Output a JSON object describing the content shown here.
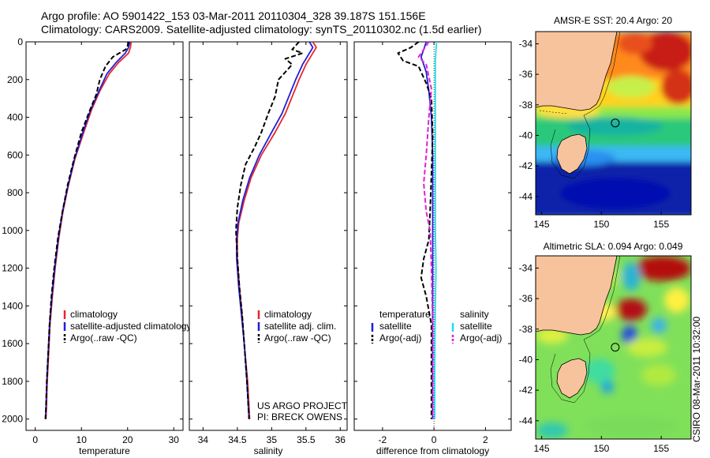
{
  "title_line1": "Argo profile: AO 5901422_153 03-Mar-2011 20110304_328 39.187S 151.156E",
  "title_line2": "Climatology: CARS2009. Satellite-adjusted climatology: synTS_20110302.nc (1.5d earlier)",
  "side_label": "CSIRO 08-Mar-2011 10:32:00",
  "colors": {
    "climatology": "#e8262a",
    "satellite": "#1f1fd6",
    "argo": "#000000",
    "sat_salinity": "#1fdcf0",
    "argo_salinity_adj": "#e21fd8"
  },
  "chart_data": [
    {
      "type": "line",
      "xlabel": "temperature",
      "ylabel": "",
      "xlim": [
        -2,
        32
      ],
      "ylim": [
        2060,
        0
      ],
      "y_reversed": true,
      "xticks": [
        0,
        10,
        20,
        30
      ],
      "yticks": [
        0,
        200,
        400,
        600,
        800,
        1000,
        1200,
        1400,
        1600,
        1800,
        2000
      ],
      "legend": [
        "climatology",
        "satellite-adjusted climatology",
        "Argo(..raw -QC)"
      ],
      "legend_position": "lower-right",
      "series": [
        {
          "name": "climatology",
          "style": "solid",
          "color": "#e8262a",
          "points": [
            [
              20.8,
              0
            ],
            [
              20.6,
              30
            ],
            [
              20.2,
              60
            ],
            [
              18,
              110
            ],
            [
              16,
              170
            ],
            [
              14,
              260
            ],
            [
              12.2,
              360
            ],
            [
              10.5,
              480
            ],
            [
              8.6,
              620
            ],
            [
              7.2,
              760
            ],
            [
              6,
              900
            ],
            [
              5.1,
              1040
            ],
            [
              4.3,
              1200
            ],
            [
              3.7,
              1350
            ],
            [
              3.2,
              1500
            ],
            [
              2.9,
              1650
            ],
            [
              2.6,
              1800
            ],
            [
              2.4,
              1950
            ],
            [
              2.3,
              2000
            ]
          ]
        },
        {
          "name": "satellite-adjusted climatology",
          "style": "solid",
          "color": "#1f1fd6",
          "points": [
            [
              20.5,
              0
            ],
            [
              20.2,
              30
            ],
            [
              19.5,
              60
            ],
            [
              17.5,
              110
            ],
            [
              15.5,
              170
            ],
            [
              13.8,
              260
            ],
            [
              12,
              360
            ],
            [
              10.3,
              480
            ],
            [
              8.5,
              620
            ],
            [
              7.1,
              760
            ],
            [
              5.9,
              900
            ],
            [
              5,
              1040
            ],
            [
              4.2,
              1200
            ],
            [
              3.6,
              1350
            ],
            [
              3.1,
              1500
            ],
            [
              2.8,
              1650
            ],
            [
              2.5,
              1800
            ],
            [
              2.3,
              1950
            ],
            [
              2.2,
              2000
            ]
          ]
        },
        {
          "name": "Argo(..raw -QC)",
          "style": "dashed",
          "color": "#000000",
          "points": [
            [
              20.2,
              0
            ],
            [
              20.0,
              20
            ],
            [
              19.6,
              40
            ],
            [
              18.2,
              60
            ],
            [
              16.8,
              80
            ],
            [
              15.2,
              130
            ],
            [
              14,
              200
            ],
            [
              13.2,
              280
            ],
            [
              11.7,
              370
            ],
            [
              10,
              480
            ],
            [
              8.4,
              620
            ],
            [
              7,
              760
            ],
            [
              5.9,
              900
            ],
            [
              4.9,
              1040
            ],
            [
              4.1,
              1200
            ],
            [
              3.5,
              1350
            ],
            [
              3.1,
              1500
            ],
            [
              2.8,
              1650
            ],
            [
              2.5,
              1800
            ],
            [
              2.3,
              1950
            ],
            [
              2.2,
              2000
            ]
          ]
        }
      ]
    },
    {
      "type": "line",
      "xlabel": "salinity",
      "ylabel": "",
      "xlim": [
        33.8,
        36.1
      ],
      "ylim": [
        2060,
        0
      ],
      "y_reversed": true,
      "xticks": [
        34,
        34.5,
        35,
        35.5,
        36
      ],
      "yticks": [
        0,
        200,
        400,
        600,
        800,
        1000,
        1200,
        1400,
        1600,
        1800,
        2000
      ],
      "legend": [
        "climatology",
        "satellite adj. clim.",
        "Argo(..raw -QC)"
      ],
      "legend_position": "lower-right",
      "annotation": [
        "US ARGO PROJECT",
        "PI: BRECK OWENS"
      ],
      "series": [
        {
          "name": "climatology",
          "style": "solid",
          "color": "#e8262a",
          "points": [
            [
              35.6,
              0
            ],
            [
              35.65,
              30
            ],
            [
              35.6,
              60
            ],
            [
              35.5,
              120
            ],
            [
              35.4,
              200
            ],
            [
              35.3,
              290
            ],
            [
              35.2,
              380
            ],
            [
              35.05,
              480
            ],
            [
              34.85,
              600
            ],
            [
              34.7,
              720
            ],
            [
              34.6,
              840
            ],
            [
              34.52,
              960
            ],
            [
              34.5,
              1040
            ],
            [
              34.5,
              1150
            ],
            [
              34.53,
              1300
            ],
            [
              34.57,
              1450
            ],
            [
              34.6,
              1600
            ],
            [
              34.65,
              1800
            ],
            [
              34.68,
              2000
            ]
          ]
        },
        {
          "name": "satellite adj. clim.",
          "style": "solid",
          "color": "#1f1fd6",
          "points": [
            [
              35.55,
              0
            ],
            [
              35.6,
              30
            ],
            [
              35.55,
              60
            ],
            [
              35.45,
              120
            ],
            [
              35.35,
              200
            ],
            [
              35.25,
              290
            ],
            [
              35.15,
              380
            ],
            [
              35.0,
              480
            ],
            [
              34.82,
              600
            ],
            [
              34.68,
              720
            ],
            [
              34.58,
              840
            ],
            [
              34.51,
              960
            ],
            [
              34.49,
              1040
            ],
            [
              34.49,
              1150
            ],
            [
              34.52,
              1300
            ],
            [
              34.56,
              1450
            ],
            [
              34.6,
              1600
            ],
            [
              34.64,
              1800
            ],
            [
              34.67,
              2000
            ]
          ]
        },
        {
          "name": "Argo(..raw -QC)",
          "style": "dashed",
          "color": "#000000",
          "points": [
            [
              35.4,
              0
            ],
            [
              35.3,
              40
            ],
            [
              35.45,
              60
            ],
            [
              35.2,
              90
            ],
            [
              35.3,
              120
            ],
            [
              35.1,
              200
            ],
            [
              35.05,
              290
            ],
            [
              34.95,
              380
            ],
            [
              34.85,
              480
            ],
            [
              34.75,
              560
            ],
            [
              34.62,
              650
            ],
            [
              34.55,
              760
            ],
            [
              34.5,
              880
            ],
            [
              34.48,
              1000
            ],
            [
              34.5,
              1150
            ],
            [
              34.53,
              1300
            ],
            [
              34.57,
              1450
            ],
            [
              34.6,
              1600
            ],
            [
              34.64,
              1800
            ],
            [
              34.67,
              2000
            ]
          ]
        }
      ]
    },
    {
      "type": "line",
      "xlabel": "difference from climatology",
      "ylabel": "",
      "xlim": [
        -3.1,
        3.0
      ],
      "ylim": [
        2060,
        0
      ],
      "y_reversed": true,
      "xticks": [
        -2,
        0,
        2
      ],
      "yticks": [
        0,
        200,
        400,
        600,
        800,
        1000,
        1200,
        1400,
        1600,
        1800,
        2000
      ],
      "legend": [
        "temperature",
        "satellite",
        "Argo(-adj)",
        "salinity",
        "satellite",
        "Argo(-adj)"
      ],
      "legend_position": "lower-right",
      "series": [
        {
          "name": "satellite",
          "group": "temperature",
          "style": "solid",
          "color": "#1f1fd6",
          "points": [
            [
              -0.3,
              0
            ],
            [
              -0.4,
              40
            ],
            [
              -0.5,
              80
            ],
            [
              -0.3,
              160
            ],
            [
              -0.2,
              260
            ],
            [
              -0.1,
              400
            ],
            [
              -0.05,
              600
            ],
            [
              -0.05,
              900
            ],
            [
              -0.05,
              1200
            ],
            [
              -0.05,
              1500
            ],
            [
              -0.05,
              1800
            ],
            [
              -0.05,
              2000
            ]
          ]
        },
        {
          "name": "Argo(-adj)",
          "group": "temperature",
          "style": "dashed",
          "color": "#000000",
          "points": [
            [
              -0.6,
              0
            ],
            [
              -0.9,
              30
            ],
            [
              -1.4,
              60
            ],
            [
              -1.2,
              100
            ],
            [
              -0.6,
              130
            ],
            [
              -0.3,
              220
            ],
            [
              -0.1,
              300
            ],
            [
              -0.05,
              500
            ],
            [
              -0.1,
              700
            ],
            [
              -0.15,
              900
            ],
            [
              -0.2,
              1050
            ],
            [
              -0.4,
              1150
            ],
            [
              -0.5,
              1250
            ],
            [
              -0.3,
              1350
            ],
            [
              -0.1,
              1500
            ],
            [
              -0.1,
              1700
            ],
            [
              -0.1,
              2000
            ]
          ]
        },
        {
          "name": "satellite",
          "group": "salinity",
          "style": "solid",
          "color": "#1fdcf0",
          "points": [
            [
              0.1,
              0
            ],
            [
              0.05,
              100
            ],
            [
              0.05,
              200
            ],
            [
              0.05,
              400
            ],
            [
              0.05,
              700
            ],
            [
              0.05,
              1000
            ],
            [
              0.08,
              1200
            ],
            [
              0.05,
              1400
            ],
            [
              0.03,
              1700
            ],
            [
              0.03,
              2000
            ]
          ]
        },
        {
          "name": "Argo(-adj)",
          "group": "salinity",
          "style": "dashed",
          "color": "#e21fd8",
          "points": [
            [
              -0.2,
              0
            ],
            [
              -0.4,
              40
            ],
            [
              -0.6,
              80
            ],
            [
              -0.3,
              120
            ],
            [
              -0.1,
              250
            ],
            [
              -0.2,
              400
            ],
            [
              -0.3,
              600
            ],
            [
              -0.4,
              750
            ],
            [
              -0.3,
              900
            ],
            [
              -0.15,
              1000
            ],
            [
              -0.1,
              1200
            ],
            [
              -0.05,
              1500
            ],
            [
              -0.05,
              2000
            ]
          ]
        }
      ]
    },
    {
      "type": "heatmap",
      "title": "AMSR-E SST: 20.4  Argo: 20",
      "xlim": [
        144.5,
        157.5
      ],
      "ylim": [
        -45.2,
        -33.2
      ],
      "xticks": [
        145,
        150,
        155
      ],
      "yticks": [
        -34,
        -36,
        -38,
        -40,
        -42,
        -44
      ],
      "marker": [
        151.156,
        -39.187
      ]
    },
    {
      "type": "heatmap",
      "title": "Altimetric SLA: 0.094  Argo: 0.049",
      "xlim": [
        144.5,
        157.5
      ],
      "ylim": [
        -45.2,
        -33.2
      ],
      "xticks": [
        145,
        150,
        155
      ],
      "yticks": [
        -34,
        -36,
        -38,
        -40,
        -42,
        -44
      ],
      "marker": [
        151.156,
        -39.187
      ]
    }
  ]
}
